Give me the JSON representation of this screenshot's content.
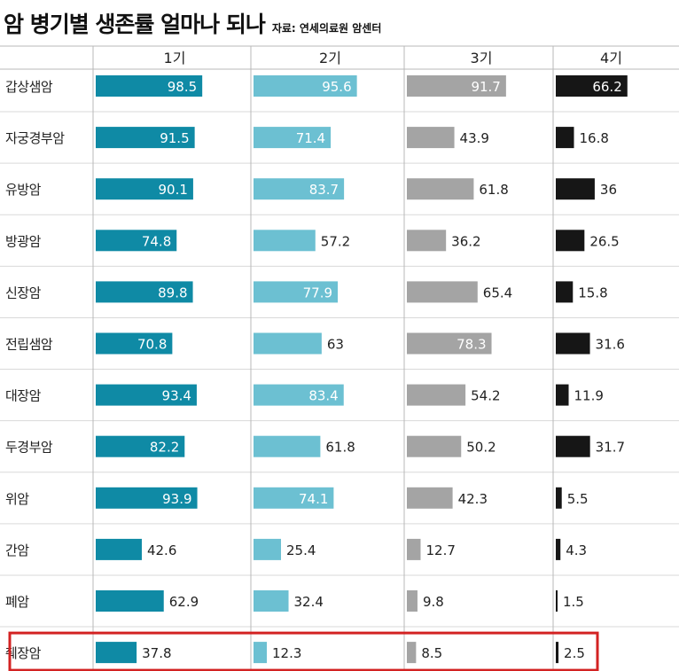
{
  "title": "암 병기별 생존률 얼마나 되나",
  "source": "자료: 연세의료원 암센터",
  "colors": {
    "stage1": "#0f8aa5",
    "stage2": "#6cc0d2",
    "stage3": "#a4a4a4",
    "stage4": "#161616",
    "highlight": "#d32222",
    "rule": "#b8b8b8"
  },
  "chart_data": {
    "type": "bar",
    "orientation": "horizontal",
    "facets": "one panel per stage",
    "categories": [
      "갑상샘암",
      "자궁경부암",
      "유방암",
      "방광암",
      "신장암",
      "전립샘암",
      "대장암",
      "두경부암",
      "위암",
      "간암",
      "폐암",
      "췌장암"
    ],
    "series": [
      {
        "name": "1기",
        "values": [
          98.5,
          91.5,
          90.1,
          74.8,
          89.8,
          70.8,
          93.4,
          82.2,
          93.9,
          42.6,
          62.9,
          37.8
        ]
      },
      {
        "name": "2기",
        "values": [
          95.6,
          71.4,
          83.7,
          57.2,
          77.9,
          63,
          83.4,
          61.8,
          74.1,
          25.4,
          32.4,
          12.3
        ]
      },
      {
        "name": "3기",
        "values": [
          91.7,
          43.9,
          61.8,
          36.2,
          65.4,
          78.3,
          54.2,
          50.2,
          42.3,
          12.7,
          9.8,
          8.5
        ]
      },
      {
        "name": "4기",
        "values": [
          66.2,
          16.8,
          36,
          26.5,
          15.8,
          31.6,
          11.9,
          31.7,
          5.5,
          4.3,
          1.5,
          2.5
        ]
      }
    ],
    "value_labels": [
      [
        "98.5",
        "91.5",
        "90.1",
        "74.8",
        "89.8",
        "70.8",
        "93.4",
        "82.2",
        "93.9",
        "42.6",
        "62.9",
        "37.8"
      ],
      [
        "95.6",
        "71.4",
        "83.7",
        "57.2",
        "77.9",
        "63",
        "83.4",
        "61.8",
        "74.1",
        "25.4",
        "32.4",
        "12.3"
      ],
      [
        "91.7",
        "43.9",
        "61.8",
        "36.2",
        "65.4",
        "78.3",
        "54.2",
        "50.2",
        "42.3",
        "12.7",
        "9.8",
        "8.5"
      ],
      [
        "66.2",
        "16.8",
        "36",
        "26.5",
        "15.8",
        "31.6",
        "11.9",
        "31.7",
        "5.5",
        "4.3",
        "1.5",
        "2.5"
      ]
    ],
    "xlim": [
      0,
      100
    ],
    "highlighted_category": "췌장암"
  }
}
